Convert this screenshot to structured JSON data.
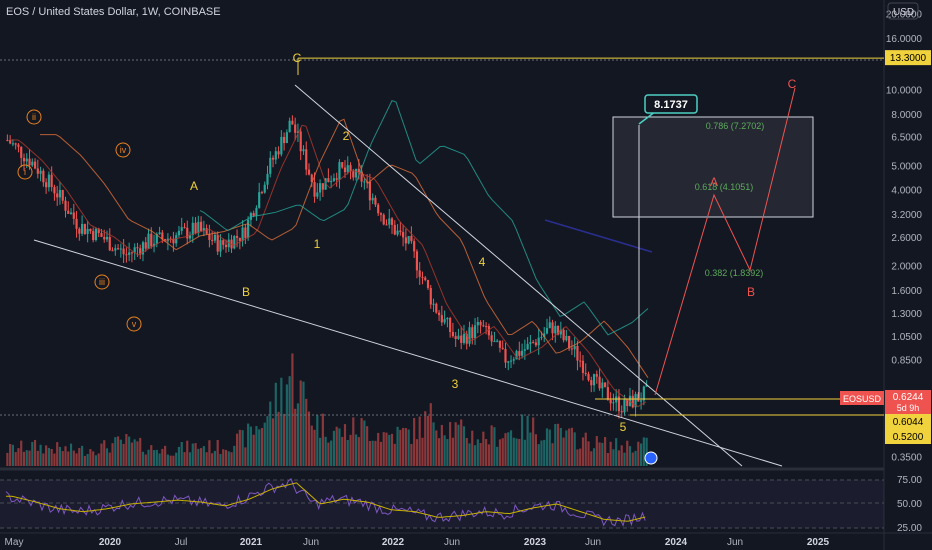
{
  "title": "EOS / United States Dollar, 1W, COINBASE",
  "currency": "USD",
  "colors": {
    "background": "#131722",
    "up": "#26a69a",
    "down": "#ef5350",
    "wave_label": "#f0d23c",
    "minor_wave": "#e8821e",
    "projection": "#ef5350",
    "fib": "#5dab5b",
    "rsi": "#7e57c2",
    "rsi_ma": "#c9b300"
  },
  "price_scale": [
    "20.0000",
    "16.0000",
    "13.3000",
    "10.0000",
    "8.0000",
    "6.5000",
    "5.0000",
    "4.0000",
    "3.2000",
    "2.6000",
    "2.0000",
    "1.6000",
    "1.3000",
    "1.0500",
    "0.8500",
    "0.6244",
    "0.6044",
    "0.5200",
    "0.3500"
  ],
  "price_tags": {
    "resistance": "13.3000",
    "symbol": "EOSUSD",
    "last": "0.6244",
    "countdown": "5d 9h",
    "support_1": "0.6044",
    "support_2": "0.5200"
  },
  "time_axis": [
    "May",
    "2020",
    "Jul",
    "2021",
    "Jun",
    "2022",
    "Jun",
    "2023",
    "Jun",
    "2024",
    "Jun",
    "2025"
  ],
  "target_box": "8.1737",
  "fib_levels": [
    "0.786 (7.2702)",
    "0.618 (4.1051)",
    "0.382 (1.8392)"
  ],
  "wave_labels": {
    "minor": [
      "i",
      "ii",
      "iii",
      "iv",
      "v"
    ],
    "major": [
      "A",
      "B",
      "C",
      "1",
      "2",
      "3",
      "4",
      "5"
    ],
    "projection": [
      "A",
      "B",
      "C"
    ]
  },
  "rsi_scale": [
    "75.00",
    "50.00",
    "25.00"
  ],
  "chart_data": {
    "type": "candlestick",
    "title": "EOS / United States Dollar, 1W, COINBASE",
    "y_scale": "log",
    "ylim": [
      0.33,
      22
    ],
    "x": [
      "2019-05",
      "2019-07",
      "2019-09",
      "2019-11",
      "2020-01",
      "2020-03",
      "2020-05",
      "2020-07",
      "2020-09",
      "2020-11",
      "2021-01",
      "2021-03",
      "2021-05",
      "2021-07",
      "2021-09",
      "2021-11",
      "2022-01",
      "2022-03",
      "2022-05",
      "2022-07",
      "2022-09",
      "2022-11",
      "2023-01",
      "2023-03",
      "2023-05",
      "2023-07",
      "2023-09",
      "2023-10"
    ],
    "close": [
      6.3,
      5.2,
      4.0,
      2.9,
      2.6,
      2.2,
      2.5,
      2.6,
      2.8,
      2.4,
      2.7,
      4.8,
      7.5,
      4.0,
      4.8,
      4.4,
      3.0,
      2.4,
      1.4,
      1.0,
      1.15,
      0.85,
      0.95,
      1.15,
      0.9,
      0.65,
      0.55,
      0.6244
    ],
    "volume_relative": [
      0.15,
      0.18,
      0.16,
      0.14,
      0.17,
      0.22,
      0.16,
      0.15,
      0.18,
      0.17,
      0.25,
      0.45,
      0.85,
      0.4,
      0.3,
      0.35,
      0.28,
      0.3,
      0.45,
      0.32,
      0.25,
      0.3,
      0.35,
      0.3,
      0.25,
      0.2,
      0.18,
      0.2
    ],
    "rsi": [
      58,
      52,
      45,
      42,
      45,
      50,
      52,
      54,
      52,
      48,
      55,
      66,
      72,
      50,
      55,
      52,
      44,
      42,
      36,
      38,
      42,
      40,
      46,
      50,
      42,
      34,
      32,
      38
    ]
  }
}
